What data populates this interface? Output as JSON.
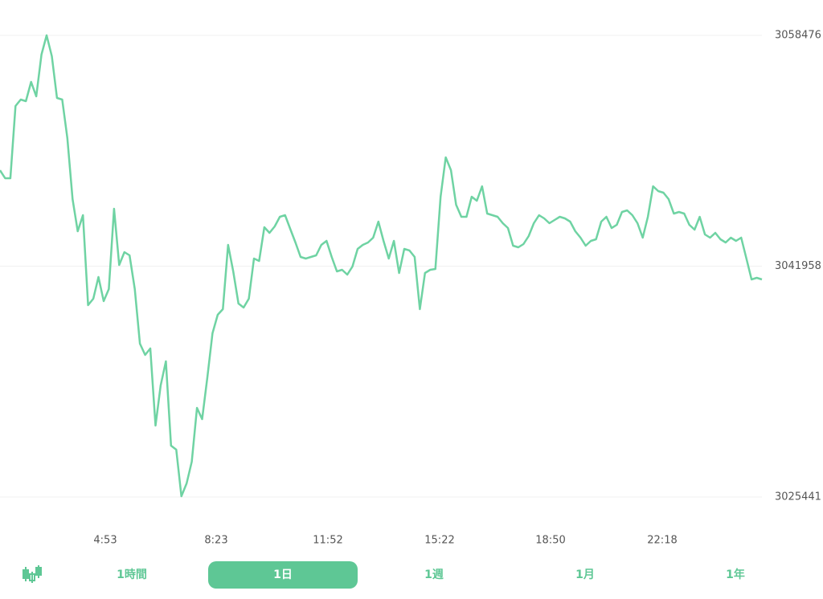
{
  "chart_data": {
    "type": "line",
    "color": "#6fd3a3",
    "grid": true,
    "ylim": [
      3025441,
      3058476
    ],
    "yticks": [
      3025441,
      3041958,
      3058476
    ],
    "xtick_labels": [
      "4:53",
      "8:23",
      "11:52",
      "15:22",
      "18:50",
      "22:18"
    ],
    "values": [
      3048823,
      3048249,
      3048249,
      3053419,
      3053879,
      3053764,
      3055143,
      3054109,
      3057096,
      3058476,
      3056981,
      3053994,
      3053879,
      3051121,
      3046755,
      3044457,
      3045606,
      3039172,
      3039631,
      3041182,
      3039459,
      3040321,
      3046066,
      3042044,
      3042963,
      3042733,
      3040321,
      3036414,
      3035610,
      3036069,
      3030554,
      3033427,
      3035150,
      3029118,
      3028831,
      3025498,
      3026418,
      3027969,
      3031818,
      3031014,
      3034001,
      3037161,
      3038482,
      3038884,
      3043480,
      3041584,
      3039286,
      3038999,
      3039631,
      3042504,
      3042331,
      3044744,
      3044342,
      3044802,
      3045491,
      3045606,
      3044629,
      3043653,
      3042619,
      3042504,
      3042619,
      3042733,
      3043480,
      3043768,
      3042619,
      3041584,
      3041699,
      3041355,
      3041929,
      3043193,
      3043480,
      3043653,
      3043997,
      3045146,
      3043768,
      3042504,
      3043768,
      3041470,
      3043193,
      3043078,
      3042619,
      3038884,
      3041470,
      3041699,
      3041757,
      3046927,
      3049742,
      3048823,
      3046353,
      3045491,
      3045491,
      3046927,
      3046640,
      3047674,
      3045721,
      3045606,
      3045491,
      3045031,
      3044687,
      3043423,
      3043308,
      3043538,
      3044112,
      3045031,
      3045606,
      3045376,
      3045031,
      3045261,
      3045491,
      3045376,
      3045146,
      3044457,
      3043997,
      3043423,
      3043768,
      3043882,
      3045146,
      3045491,
      3044687,
      3044917,
      3045836,
      3045951,
      3045606,
      3045031,
      3043997,
      3045491,
      3047674,
      3047329,
      3047215,
      3046755,
      3045721,
      3045836,
      3045721,
      3044917,
      3044572,
      3045491,
      3044227,
      3043997,
      3044342,
      3043882,
      3043653,
      3043997,
      3043768,
      3043997,
      3042504,
      3041010,
      3041125,
      3041010
    ]
  },
  "tabs": [
    {
      "label": "1時間",
      "active": false
    },
    {
      "label": "1日",
      "active": true
    },
    {
      "label": "1週",
      "active": false
    },
    {
      "label": "1月",
      "active": false
    },
    {
      "label": "1年",
      "active": false
    }
  ]
}
